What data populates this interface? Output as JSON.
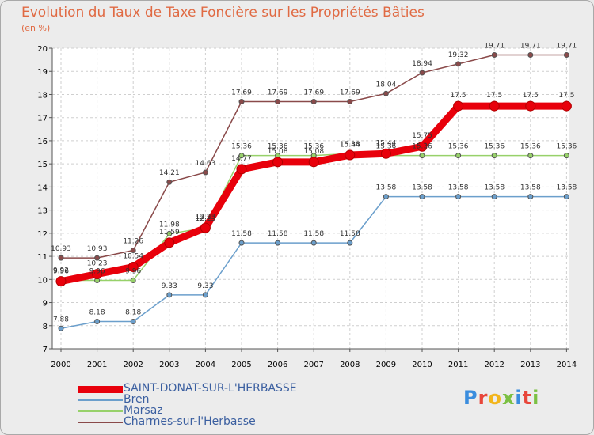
{
  "header": {
    "title": "Evolution du Taux de Taxe Foncière sur les Propriétés Bâties",
    "unit": "(en %)"
  },
  "logo": {
    "text": "Proxiti",
    "colors": [
      "#3a8dde",
      "#e8463a",
      "#f2b51c",
      "#7bc043",
      "#3a8dde",
      "#e8463a",
      "#7bc043"
    ]
  },
  "chart_data": {
    "type": "line",
    "x": [
      2000,
      2001,
      2002,
      2003,
      2004,
      2005,
      2006,
      2007,
      2008,
      2009,
      2010,
      2011,
      2012,
      2013,
      2014
    ],
    "ylim": [
      7,
      20
    ],
    "yticks": [
      7,
      8,
      9,
      10,
      11,
      12,
      13,
      14,
      15,
      16,
      17,
      18,
      19,
      20
    ],
    "grid": true,
    "legend_position": "bottom-left",
    "series": [
      {
        "name": "SAINT-DONAT-SUR-L'HERBASSE",
        "color": "#e8000b",
        "values": [
          9.92,
          10.23,
          10.54,
          11.59,
          12.23,
          14.77,
          15.08,
          15.08,
          15.38,
          15.44,
          15.75,
          17.5,
          17.5,
          17.5,
          17.5
        ]
      },
      {
        "name": "Bren",
        "color": "#6b9fcc",
        "values": [
          7.88,
          8.18,
          8.18,
          9.33,
          9.33,
          11.58,
          11.58,
          11.58,
          11.58,
          13.58,
          13.58,
          13.58,
          13.58,
          13.58,
          13.58
        ]
      },
      {
        "name": "Marsaz",
        "color": "#97d16a",
        "values": [
          9.96,
          9.96,
          9.96,
          11.98,
          12.23,
          15.36,
          15.36,
          15.36,
          15.44,
          15.36,
          15.36,
          15.36,
          15.36,
          15.36,
          15.36
        ]
      },
      {
        "name": "Charmes-sur-l'Herbasse",
        "color": "#8a4a4a",
        "values": [
          10.93,
          10.93,
          11.26,
          14.21,
          14.63,
          17.69,
          17.69,
          17.69,
          17.69,
          18.04,
          18.94,
          19.32,
          19.71,
          19.71,
          19.71
        ]
      }
    ]
  }
}
